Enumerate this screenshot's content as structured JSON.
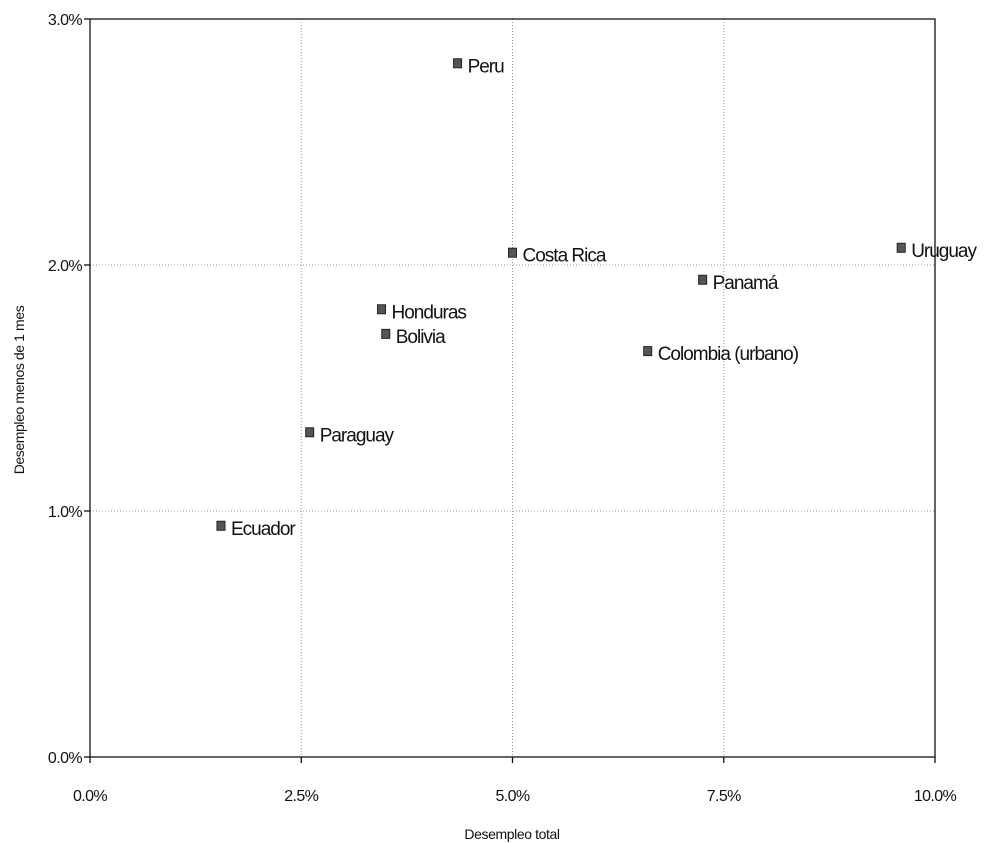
{
  "chart_data": {
    "type": "scatter",
    "title": "",
    "xlabel": "Desempleo total",
    "ylabel": "Desempleo menos de 1 mes",
    "xlim": [
      0,
      10
    ],
    "ylim": [
      0,
      3
    ],
    "x_ticks": [
      {
        "value": 0,
        "label": "0.0%"
      },
      {
        "value": 2.5,
        "label": "2.5%"
      },
      {
        "value": 5,
        "label": "5.0%"
      },
      {
        "value": 7.5,
        "label": "7.5%"
      },
      {
        "value": 10,
        "label": "10.0%"
      }
    ],
    "y_ticks": [
      {
        "value": 0,
        "label": "0.0%"
      },
      {
        "value": 1,
        "label": "1.0%"
      },
      {
        "value": 2,
        "label": "2.0%"
      },
      {
        "value": 3,
        "label": "3.0%"
      }
    ],
    "grid": true,
    "legend": "none",
    "marker_color": "#555555",
    "points": [
      {
        "label": "Peru",
        "x": 4.35,
        "y": 2.82
      },
      {
        "label": "Costa Rica",
        "x": 5.0,
        "y": 2.05
      },
      {
        "label": "Uruguay",
        "x": 9.6,
        "y": 2.07
      },
      {
        "label": "Panamá",
        "x": 7.25,
        "y": 1.94
      },
      {
        "label": "Honduras",
        "x": 3.45,
        "y": 1.82
      },
      {
        "label": "Bolivia",
        "x": 3.5,
        "y": 1.72
      },
      {
        "label": "Colombia (urbano)",
        "x": 6.6,
        "y": 1.65
      },
      {
        "label": "Paraguay",
        "x": 2.6,
        "y": 1.32
      },
      {
        "label": "Ecuador",
        "x": 1.55,
        "y": 0.94
      }
    ]
  }
}
